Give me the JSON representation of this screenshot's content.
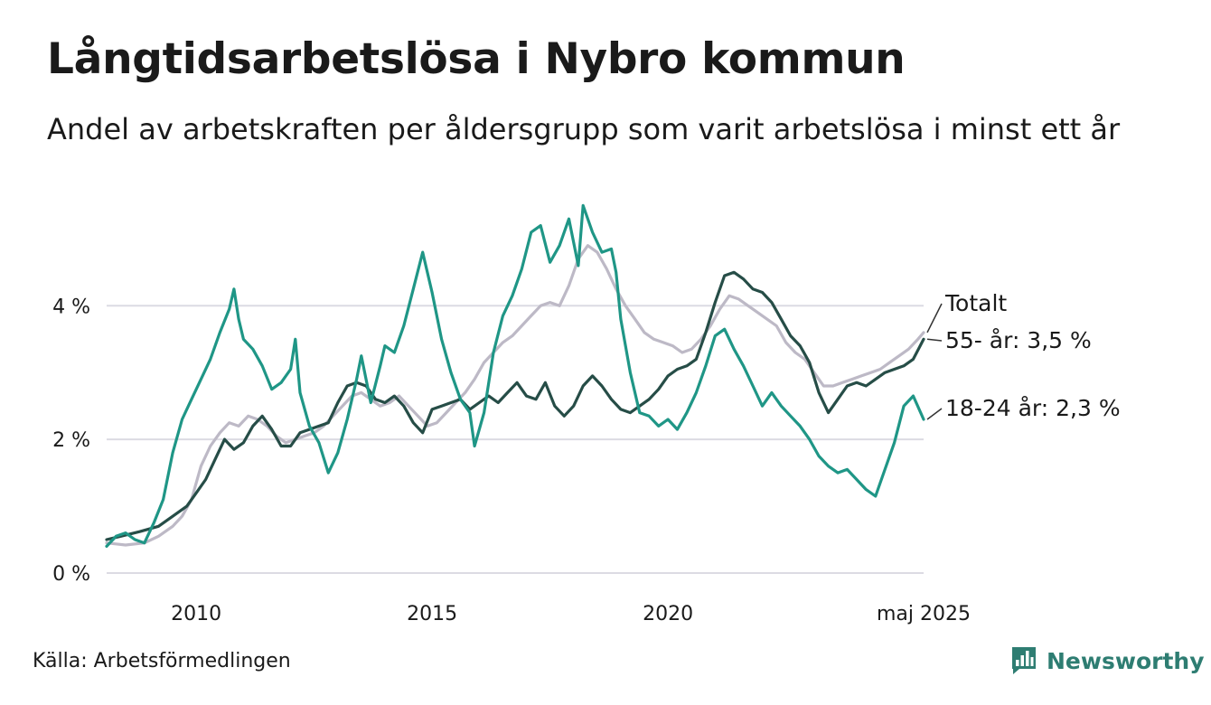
{
  "header": {
    "title": "Långtidsarbetslösa i Nybro kommun",
    "subtitle": "Andel av arbetskraften per åldersgrupp som varit arbetslösa i minst ett år"
  },
  "footer": {
    "source": "Källa: Arbetsförmedlingen",
    "brand": "Newsworthy",
    "brand_color": "#2e7d72"
  },
  "chart_data": {
    "type": "line",
    "x_range": [
      2008.1,
      2025.42
    ],
    "ylim": [
      0,
      5.6
    ],
    "y_ticks": [
      {
        "value": 0,
        "label": "0 %"
      },
      {
        "value": 2,
        "label": "2 %"
      },
      {
        "value": 4,
        "label": "4 %"
      }
    ],
    "x_ticks": [
      {
        "value": 2010,
        "label": "2010"
      },
      {
        "value": 2015,
        "label": "2015"
      },
      {
        "value": 2020,
        "label": "2020"
      },
      {
        "value": 2025.42,
        "label": "maj 2025"
      }
    ],
    "grid": true,
    "series": [
      {
        "name": "Totalt",
        "end_label": "Totalt",
        "color": "#bdb9c6",
        "points": [
          [
            2008.1,
            0.45
          ],
          [
            2008.5,
            0.42
          ],
          [
            2008.9,
            0.45
          ],
          [
            2009.2,
            0.55
          ],
          [
            2009.5,
            0.7
          ],
          [
            2009.7,
            0.85
          ],
          [
            2009.9,
            1.1
          ],
          [
            2010.1,
            1.6
          ],
          [
            2010.3,
            1.9
          ],
          [
            2010.5,
            2.1
          ],
          [
            2010.7,
            2.25
          ],
          [
            2010.9,
            2.2
          ],
          [
            2011.1,
            2.35
          ],
          [
            2011.3,
            2.3
          ],
          [
            2011.5,
            2.2
          ],
          [
            2011.7,
            2.05
          ],
          [
            2011.9,
            1.95
          ],
          [
            2012.1,
            2.0
          ],
          [
            2012.3,
            2.05
          ],
          [
            2012.5,
            2.1
          ],
          [
            2012.7,
            2.2
          ],
          [
            2012.9,
            2.35
          ],
          [
            2013.1,
            2.5
          ],
          [
            2013.3,
            2.65
          ],
          [
            2013.5,
            2.7
          ],
          [
            2013.7,
            2.6
          ],
          [
            2013.9,
            2.5
          ],
          [
            2014.1,
            2.55
          ],
          [
            2014.3,
            2.65
          ],
          [
            2014.5,
            2.5
          ],
          [
            2014.7,
            2.35
          ],
          [
            2014.9,
            2.2
          ],
          [
            2015.1,
            2.25
          ],
          [
            2015.3,
            2.4
          ],
          [
            2015.5,
            2.55
          ],
          [
            2015.7,
            2.7
          ],
          [
            2015.9,
            2.9
          ],
          [
            2016.1,
            3.15
          ],
          [
            2016.3,
            3.3
          ],
          [
            2016.5,
            3.45
          ],
          [
            2016.7,
            3.55
          ],
          [
            2016.9,
            3.7
          ],
          [
            2017.1,
            3.85
          ],
          [
            2017.3,
            4.0
          ],
          [
            2017.5,
            4.05
          ],
          [
            2017.7,
            4.0
          ],
          [
            2017.9,
            4.3
          ],
          [
            2018.1,
            4.7
          ],
          [
            2018.3,
            4.9
          ],
          [
            2018.5,
            4.8
          ],
          [
            2018.7,
            4.55
          ],
          [
            2018.9,
            4.25
          ],
          [
            2019.1,
            4.0
          ],
          [
            2019.3,
            3.8
          ],
          [
            2019.5,
            3.6
          ],
          [
            2019.7,
            3.5
          ],
          [
            2019.9,
            3.45
          ],
          [
            2020.1,
            3.4
          ],
          [
            2020.3,
            3.3
          ],
          [
            2020.5,
            3.35
          ],
          [
            2020.7,
            3.5
          ],
          [
            2020.9,
            3.7
          ],
          [
            2021.1,
            3.95
          ],
          [
            2021.3,
            4.15
          ],
          [
            2021.5,
            4.1
          ],
          [
            2021.7,
            4.0
          ],
          [
            2021.9,
            3.9
          ],
          [
            2022.1,
            3.8
          ],
          [
            2022.3,
            3.7
          ],
          [
            2022.5,
            3.45
          ],
          [
            2022.7,
            3.3
          ],
          [
            2022.9,
            3.2
          ],
          [
            2023.1,
            3.0
          ],
          [
            2023.3,
            2.8
          ],
          [
            2023.5,
            2.8
          ],
          [
            2023.7,
            2.85
          ],
          [
            2023.9,
            2.9
          ],
          [
            2024.1,
            2.95
          ],
          [
            2024.3,
            3.0
          ],
          [
            2024.5,
            3.05
          ],
          [
            2024.7,
            3.15
          ],
          [
            2024.9,
            3.25
          ],
          [
            2025.1,
            3.35
          ],
          [
            2025.3,
            3.5
          ],
          [
            2025.42,
            3.6
          ]
        ]
      },
      {
        "name": "55- år",
        "end_label": "55- år: 3,5 %",
        "color": "#264d47",
        "points": [
          [
            2008.1,
            0.5
          ],
          [
            2008.4,
            0.55
          ],
          [
            2008.8,
            0.62
          ],
          [
            2009.2,
            0.7
          ],
          [
            2009.5,
            0.85
          ],
          [
            2009.8,
            1.0
          ],
          [
            2010.0,
            1.2
          ],
          [
            2010.2,
            1.4
          ],
          [
            2010.4,
            1.7
          ],
          [
            2010.6,
            2.0
          ],
          [
            2010.8,
            1.85
          ],
          [
            2011.0,
            1.95
          ],
          [
            2011.2,
            2.2
          ],
          [
            2011.4,
            2.35
          ],
          [
            2011.6,
            2.15
          ],
          [
            2011.8,
            1.9
          ],
          [
            2012.0,
            1.9
          ],
          [
            2012.2,
            2.1
          ],
          [
            2012.4,
            2.15
          ],
          [
            2012.6,
            2.2
          ],
          [
            2012.8,
            2.25
          ],
          [
            2013.0,
            2.55
          ],
          [
            2013.2,
            2.8
          ],
          [
            2013.4,
            2.85
          ],
          [
            2013.6,
            2.8
          ],
          [
            2013.8,
            2.6
          ],
          [
            2014.0,
            2.55
          ],
          [
            2014.2,
            2.65
          ],
          [
            2014.4,
            2.5
          ],
          [
            2014.6,
            2.25
          ],
          [
            2014.8,
            2.1
          ],
          [
            2015.0,
            2.45
          ],
          [
            2015.2,
            2.5
          ],
          [
            2015.4,
            2.55
          ],
          [
            2015.6,
            2.6
          ],
          [
            2015.8,
            2.45
          ],
          [
            2016.0,
            2.55
          ],
          [
            2016.2,
            2.65
          ],
          [
            2016.4,
            2.55
          ],
          [
            2016.6,
            2.7
          ],
          [
            2016.8,
            2.85
          ],
          [
            2017.0,
            2.65
          ],
          [
            2017.2,
            2.6
          ],
          [
            2017.4,
            2.85
          ],
          [
            2017.6,
            2.5
          ],
          [
            2017.8,
            2.35
          ],
          [
            2018.0,
            2.5
          ],
          [
            2018.2,
            2.8
          ],
          [
            2018.4,
            2.95
          ],
          [
            2018.6,
            2.8
          ],
          [
            2018.8,
            2.6
          ],
          [
            2019.0,
            2.45
          ],
          [
            2019.2,
            2.4
          ],
          [
            2019.4,
            2.5
          ],
          [
            2019.6,
            2.6
          ],
          [
            2019.8,
            2.75
          ],
          [
            2020.0,
            2.95
          ],
          [
            2020.2,
            3.05
          ],
          [
            2020.4,
            3.1
          ],
          [
            2020.6,
            3.2
          ],
          [
            2020.8,
            3.6
          ],
          [
            2021.0,
            4.05
          ],
          [
            2021.2,
            4.45
          ],
          [
            2021.4,
            4.5
          ],
          [
            2021.6,
            4.4
          ],
          [
            2021.8,
            4.25
          ],
          [
            2022.0,
            4.2
          ],
          [
            2022.2,
            4.05
          ],
          [
            2022.4,
            3.8
          ],
          [
            2022.6,
            3.55
          ],
          [
            2022.8,
            3.4
          ],
          [
            2023.0,
            3.15
          ],
          [
            2023.2,
            2.7
          ],
          [
            2023.4,
            2.4
          ],
          [
            2023.6,
            2.6
          ],
          [
            2023.8,
            2.8
          ],
          [
            2024.0,
            2.85
          ],
          [
            2024.2,
            2.8
          ],
          [
            2024.4,
            2.9
          ],
          [
            2024.6,
            3.0
          ],
          [
            2024.8,
            3.05
          ],
          [
            2025.0,
            3.1
          ],
          [
            2025.2,
            3.2
          ],
          [
            2025.42,
            3.5
          ]
        ]
      },
      {
        "name": "18-24 år",
        "end_label": "18-24 år: 2,3 %",
        "color": "#1f9686",
        "points": [
          [
            2008.1,
            0.4
          ],
          [
            2008.3,
            0.55
          ],
          [
            2008.5,
            0.6
          ],
          [
            2008.7,
            0.5
          ],
          [
            2008.9,
            0.45
          ],
          [
            2009.1,
            0.75
          ],
          [
            2009.3,
            1.1
          ],
          [
            2009.5,
            1.8
          ],
          [
            2009.7,
            2.3
          ],
          [
            2009.9,
            2.6
          ],
          [
            2010.1,
            2.9
          ],
          [
            2010.3,
            3.2
          ],
          [
            2010.5,
            3.6
          ],
          [
            2010.7,
            3.95
          ],
          [
            2010.8,
            4.25
          ],
          [
            2010.9,
            3.8
          ],
          [
            2011.0,
            3.5
          ],
          [
            2011.2,
            3.35
          ],
          [
            2011.4,
            3.1
          ],
          [
            2011.6,
            2.75
          ],
          [
            2011.8,
            2.85
          ],
          [
            2012.0,
            3.05
          ],
          [
            2012.1,
            3.5
          ],
          [
            2012.2,
            2.7
          ],
          [
            2012.4,
            2.2
          ],
          [
            2012.6,
            1.95
          ],
          [
            2012.8,
            1.5
          ],
          [
            2013.0,
            1.8
          ],
          [
            2013.2,
            2.3
          ],
          [
            2013.4,
            2.9
          ],
          [
            2013.5,
            3.25
          ],
          [
            2013.7,
            2.55
          ],
          [
            2013.9,
            3.1
          ],
          [
            2014.0,
            3.4
          ],
          [
            2014.2,
            3.3
          ],
          [
            2014.4,
            3.7
          ],
          [
            2014.6,
            4.25
          ],
          [
            2014.8,
            4.8
          ],
          [
            2015.0,
            4.2
          ],
          [
            2015.2,
            3.5
          ],
          [
            2015.4,
            3.0
          ],
          [
            2015.6,
            2.6
          ],
          [
            2015.8,
            2.4
          ],
          [
            2015.9,
            1.9
          ],
          [
            2016.1,
            2.4
          ],
          [
            2016.3,
            3.3
          ],
          [
            2016.5,
            3.85
          ],
          [
            2016.7,
            4.15
          ],
          [
            2016.9,
            4.55
          ],
          [
            2017.1,
            5.1
          ],
          [
            2017.3,
            5.2
          ],
          [
            2017.5,
            4.65
          ],
          [
            2017.7,
            4.9
          ],
          [
            2017.9,
            5.3
          ],
          [
            2018.1,
            4.6
          ],
          [
            2018.2,
            5.5
          ],
          [
            2018.4,
            5.1
          ],
          [
            2018.6,
            4.8
          ],
          [
            2018.8,
            4.85
          ],
          [
            2018.9,
            4.5
          ],
          [
            2019.0,
            3.8
          ],
          [
            2019.2,
            3.0
          ],
          [
            2019.4,
            2.4
          ],
          [
            2019.6,
            2.35
          ],
          [
            2019.8,
            2.2
          ],
          [
            2020.0,
            2.3
          ],
          [
            2020.2,
            2.15
          ],
          [
            2020.4,
            2.4
          ],
          [
            2020.6,
            2.7
          ],
          [
            2020.8,
            3.1
          ],
          [
            2021.0,
            3.55
          ],
          [
            2021.2,
            3.65
          ],
          [
            2021.4,
            3.35
          ],
          [
            2021.6,
            3.1
          ],
          [
            2021.8,
            2.8
          ],
          [
            2022.0,
            2.5
          ],
          [
            2022.2,
            2.7
          ],
          [
            2022.4,
            2.5
          ],
          [
            2022.6,
            2.35
          ],
          [
            2022.8,
            2.2
          ],
          [
            2023.0,
            2.0
          ],
          [
            2023.2,
            1.75
          ],
          [
            2023.4,
            1.6
          ],
          [
            2023.6,
            1.5
          ],
          [
            2023.8,
            1.55
          ],
          [
            2024.0,
            1.4
          ],
          [
            2024.2,
            1.25
          ],
          [
            2024.4,
            1.15
          ],
          [
            2024.6,
            1.55
          ],
          [
            2024.8,
            1.95
          ],
          [
            2025.0,
            2.5
          ],
          [
            2025.2,
            2.65
          ],
          [
            2025.42,
            2.3
          ]
        ]
      }
    ]
  }
}
